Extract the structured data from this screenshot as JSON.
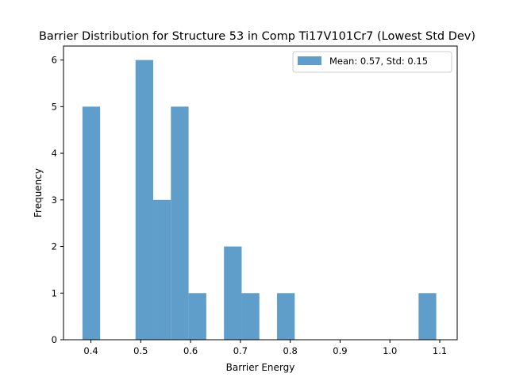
{
  "chart_data": {
    "type": "bar",
    "title": "Barrier Distribution for Structure 53 in Comp Ti17V101Cr7 (Lowest Std Dev)",
    "xlabel": "Barrier Energy",
    "ylabel": "Frequency",
    "xlim": [
      0.345,
      1.135
    ],
    "ylim": [
      0,
      6.3
    ],
    "x_ticks": [
      0.4,
      0.5,
      0.6,
      0.7,
      0.8,
      0.9,
      1.0,
      1.1
    ],
    "x_tick_labels": [
      "0.4",
      "0.5",
      "0.6",
      "0.7",
      "0.8",
      "0.9",
      "1.0",
      "1.1"
    ],
    "y_ticks": [
      0,
      1,
      2,
      3,
      4,
      5,
      6
    ],
    "y_tick_labels": [
      "0",
      "1",
      "2",
      "3",
      "4",
      "5",
      "6"
    ],
    "grid": false,
    "legend_position": "top-right",
    "series": [
      {
        "name": "Mean: 0.57, Std: 0.15",
        "color": "#5f9ecb",
        "bins": [
          {
            "x0": 0.383,
            "x1": 0.4185,
            "count": 5
          },
          {
            "x0": 0.4895,
            "x1": 0.525,
            "count": 6
          },
          {
            "x0": 0.525,
            "x1": 0.5605,
            "count": 3
          },
          {
            "x0": 0.5605,
            "x1": 0.596,
            "count": 5
          },
          {
            "x0": 0.596,
            "x1": 0.6315,
            "count": 1
          },
          {
            "x0": 0.667,
            "x1": 0.7025,
            "count": 2
          },
          {
            "x0": 0.7025,
            "x1": 0.738,
            "count": 1
          },
          {
            "x0": 0.7735,
            "x1": 0.809,
            "count": 1
          },
          {
            "x0": 1.0575,
            "x1": 1.093,
            "count": 1
          }
        ]
      }
    ]
  }
}
